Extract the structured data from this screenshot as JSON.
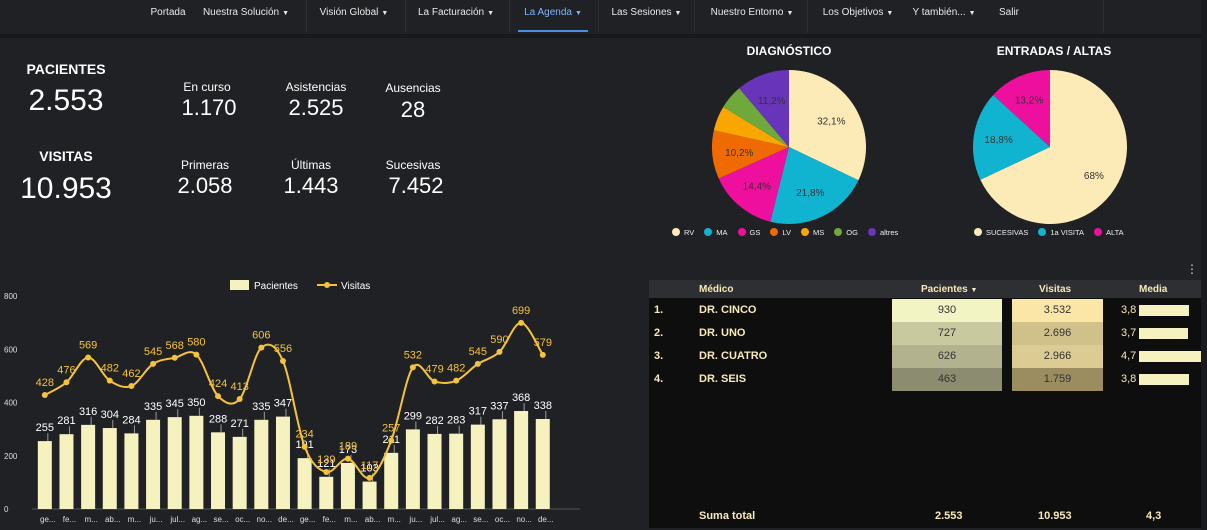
{
  "nav": {
    "items": [
      {
        "label": "Portada",
        "caret": false,
        "active": false
      },
      {
        "label": "Nuestra Solución",
        "caret": true,
        "active": false
      },
      {
        "label": "Visión Global",
        "caret": true,
        "active": false
      },
      {
        "label": "La Facturación",
        "caret": true,
        "active": false
      },
      {
        "label": "La Agenda",
        "caret": true,
        "active": true
      },
      {
        "label": "Las Sesiones",
        "caret": true,
        "active": false
      },
      {
        "label": "Nuestro Entorno",
        "caret": true,
        "active": false
      },
      {
        "label": "Los Objetivos",
        "caret": true,
        "active": false
      },
      {
        "label": "Y también...",
        "caret": true,
        "active": false
      },
      {
        "label": "Salir",
        "caret": false,
        "active": false
      }
    ]
  },
  "kpis": {
    "pacientes": {
      "title": "PACIENTES",
      "value": "2.553"
    },
    "visitas": {
      "title": "VISITAS",
      "value": "10.953"
    },
    "en_curso": {
      "label": "En curso",
      "value": "1.170"
    },
    "asistencias": {
      "label": "Asistencias",
      "value": "2.525"
    },
    "ausencias": {
      "label": "Ausencias",
      "value": "28"
    },
    "primeras": {
      "label": "Primeras",
      "value": "2.058"
    },
    "ultimas": {
      "label": "Últimas",
      "value": "1.443"
    },
    "sucesivas": {
      "label": "Sucesivas",
      "value": "7.452"
    }
  },
  "diagnostico": {
    "title": "DIAGNÓSTICO",
    "slices": [
      {
        "name": "RV",
        "value": 32.1,
        "label": "32,1%",
        "color": "#fcebb6"
      },
      {
        "name": "MA",
        "value": 21.8,
        "label": "21,8%",
        "color": "#11b4d0"
      },
      {
        "name": "GS",
        "value": 14.4,
        "label": "14,4%",
        "color": "#ee0f9e"
      },
      {
        "name": "LV",
        "value": 10.2,
        "label": "10,2%",
        "color": "#ef6a00"
      },
      {
        "name": "MS",
        "value": 5.2,
        "label": "",
        "color": "#f9a700"
      },
      {
        "name": "OG",
        "value": 5.1,
        "label": "",
        "color": "#6fa83b"
      },
      {
        "name": "altres",
        "value": 11.2,
        "label": "11,2%",
        "color": "#6734ba"
      }
    ]
  },
  "entradas": {
    "title": "ENTRADAS / ALTAS",
    "slices": [
      {
        "name": "SUCESIVAS",
        "value": 68,
        "label": "68%",
        "color": "#fcebb6"
      },
      {
        "name": "1a VISITA",
        "value": 18.8,
        "label": "18,8%",
        "color": "#11b4d0"
      },
      {
        "name": "ALTA",
        "value": 13.2,
        "label": "13,2%",
        "color": "#ee0f9e"
      }
    ]
  },
  "chart_data": {
    "type": "bar",
    "categories": [
      "ge...",
      "fe...",
      "m...",
      "ab...",
      "m...",
      "ju...",
      "jul...",
      "ag...",
      "se...",
      "oc...",
      "no...",
      "de...",
      "ge...",
      "fe...",
      "m...",
      "ab...",
      "m...",
      "ju...",
      "jul...",
      "ag...",
      "se...",
      "oc...",
      "no...",
      "de..."
    ],
    "series": [
      {
        "name": "Pacientes",
        "type": "bar",
        "values": [
          255,
          281,
          316,
          304,
          284,
          335,
          345,
          350,
          288,
          271,
          335,
          347,
          191,
          121,
          173,
          103,
          211,
          299,
          282,
          283,
          317,
          337,
          368,
          338
        ],
        "color": "#f6f2c0"
      },
      {
        "name": "Visitas",
        "type": "line",
        "values": [
          428,
          476,
          569,
          482,
          462,
          545,
          568,
          580,
          424,
          413,
          606,
          556,
          234,
          139,
          189,
          117,
          257,
          532,
          479,
          482,
          545,
          590,
          699,
          579
        ],
        "color": "#f5c33b"
      }
    ],
    "yticks": [
      "0",
      "200",
      "400",
      "600",
      "800"
    ],
    "ylim": [
      0,
      800
    ],
    "legend": "top-center"
  },
  "table": {
    "headers": {
      "medico": "Médico",
      "pacientes": "Pacientes",
      "visitas": "Visitas",
      "media": "Media"
    },
    "rows": [
      {
        "num": "1.",
        "medico": "DR. CINCO",
        "pacientes": "930",
        "visitas": "3.532",
        "media": "3,8",
        "media_value": 3.8,
        "pac_color": "#f3f4c4",
        "vis_color": "#fbe6a8"
      },
      {
        "num": "2.",
        "medico": "DR. UNO",
        "pacientes": "727",
        "visitas": "2.696",
        "media": "3,7",
        "media_value": 3.7,
        "pac_color": "#c9c9a0",
        "vis_color": "#d0c089"
      },
      {
        "num": "3.",
        "medico": "DR. CUATRO",
        "pacientes": "626",
        "visitas": "2.966",
        "media": "4,7",
        "media_value": 4.7,
        "pac_color": "#b2b38e",
        "vis_color": "#dccb92"
      },
      {
        "num": "4.",
        "medico": "DR. SEIS",
        "pacientes": "463",
        "visitas": "1.759",
        "media": "3,8",
        "media_value": 3.8,
        "pac_color": "#8c8d70",
        "vis_color": "#9b8d60"
      }
    ],
    "footer": {
      "label": "Suma total",
      "pacientes": "2.553",
      "visitas": "10.953",
      "media": "4,3"
    }
  }
}
